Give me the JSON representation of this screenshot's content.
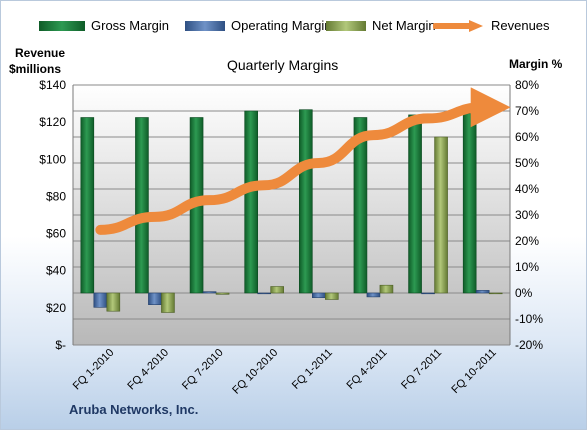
{
  "chart_data": {
    "type": "bar+line",
    "title": "Quarterly Margins",
    "left_axis_label": [
      "Revenue",
      "$millions"
    ],
    "right_axis_label": "Margin %",
    "left_ticks": [
      "$140",
      "$120",
      "$100",
      "$80",
      "$60",
      "$40",
      "$20",
      "$-"
    ],
    "right_ticks": [
      "80%",
      "70%",
      "60%",
      "50%",
      "40%",
      "30%",
      "20%",
      "10%",
      "0%",
      "-10%",
      "-20%"
    ],
    "categories": [
      "FQ 1-2010",
      "FQ 4-2010",
      "FQ 7-2010",
      "FQ 10-2010",
      "FQ 1-2011",
      "FQ 4-2011",
      "FQ 7-2011",
      "FQ 10-2011"
    ],
    "ylim_margin": [
      -20,
      80
    ],
    "ylim_revenue": [
      0,
      140
    ],
    "series": [
      {
        "name": "Gross Margin",
        "kind": "bar",
        "axis": "right",
        "color": "#1e7b3c",
        "values": [
          67.5,
          67.5,
          67.5,
          70,
          70.5,
          67.5,
          68.5,
          69
        ]
      },
      {
        "name": "Operating Margin",
        "kind": "bar",
        "axis": "right",
        "color": "#4a6fa5",
        "values": [
          -5.5,
          -4.5,
          0.5,
          0,
          -1.8,
          -1.5,
          0,
          1
        ]
      },
      {
        "name": "Net Margin",
        "kind": "bar",
        "axis": "right",
        "color": "#8fa85a",
        "values": [
          -7,
          -7.5,
          -0.5,
          2.5,
          -2.5,
          3,
          60,
          0
        ]
      },
      {
        "name": "Revenues",
        "kind": "line",
        "axis": "left",
        "color": "#ee8a3c",
        "values": [
          62,
          69,
          78,
          86,
          98,
          113,
          122,
          128
        ]
      }
    ],
    "grid": true,
    "legend": "top"
  },
  "footer": {
    "company": "Aruba Networks, Inc."
  }
}
